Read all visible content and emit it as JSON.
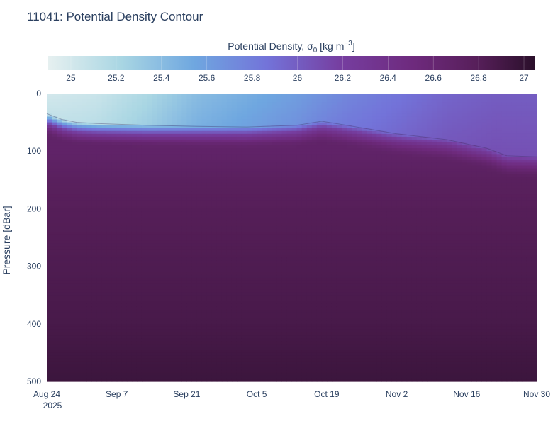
{
  "chart_data": {
    "type": "heatmap",
    "title": "11041: Potential Density Contour",
    "colorbar": {
      "title_prefix": "Potential Density, σ",
      "title_subscript": "0",
      "title_unit_prefix": " [kg m",
      "title_unit_superscript": "−3",
      "title_suffix": "]",
      "range": [
        24.9,
        27.05
      ],
      "ticks": [
        25,
        25.2,
        25.4,
        25.6,
        25.8,
        26,
        26.2,
        26.4,
        26.6,
        26.8,
        27
      ],
      "tick_labels": [
        "25",
        "25.2",
        "25.4",
        "25.6",
        "25.8",
        "26",
        "26.2",
        "26.4",
        "26.6",
        "26.8",
        "27"
      ],
      "colorscale": [
        [
          0.0,
          "#e6f0f0"
        ],
        [
          0.15,
          "#a9d6e3"
        ],
        [
          0.3,
          "#6fa7e0"
        ],
        [
          0.45,
          "#7373d9"
        ],
        [
          0.6,
          "#763ea0"
        ],
        [
          0.75,
          "#6e2a7d"
        ],
        [
          0.88,
          "#571f5a"
        ],
        [
          1.0,
          "#2a0f2a"
        ]
      ]
    },
    "xaxis": {
      "range_days": [
        0,
        98
      ],
      "ticks_days": [
        0,
        14,
        28,
        42,
        56,
        70,
        84,
        98
      ],
      "tick_labels": [
        "Aug 24",
        "Sep 7",
        "Sep 21",
        "Oct 5",
        "Oct 19",
        "Nov 2",
        "Nov 16",
        "Nov 30"
      ],
      "year_label": "2025"
    },
    "yaxis": {
      "label": "Pressure [dBar]",
      "range": [
        500,
        0
      ],
      "ticks": [
        0,
        100,
        200,
        300,
        400,
        500
      ],
      "tick_labels": [
        "0",
        "100",
        "200",
        "300",
        "400",
        "500"
      ],
      "reversed": true
    },
    "surface_density_profile": {
      "days": [
        0,
        10,
        20,
        30,
        40,
        50,
        60,
        70,
        80,
        90,
        98
      ],
      "surface_sigma": [
        25.0,
        25.05,
        25.2,
        25.4,
        25.5,
        25.6,
        25.75,
        25.85,
        25.95,
        26.0,
        26.0
      ]
    },
    "mixed_layer_depth": {
      "days": [
        0,
        3,
        6,
        10,
        20,
        30,
        40,
        50,
        55,
        60,
        70,
        80,
        88,
        92,
        98
      ],
      "depth": [
        35,
        45,
        50,
        52,
        55,
        57,
        58,
        55,
        48,
        55,
        70,
        80,
        95,
        108,
        110
      ]
    },
    "deep_sigma": {
      "depths": [
        100,
        150,
        200,
        300,
        400,
        500
      ],
      "values": [
        26.68,
        26.76,
        26.8,
        26.84,
        26.88,
        26.95
      ]
    }
  }
}
